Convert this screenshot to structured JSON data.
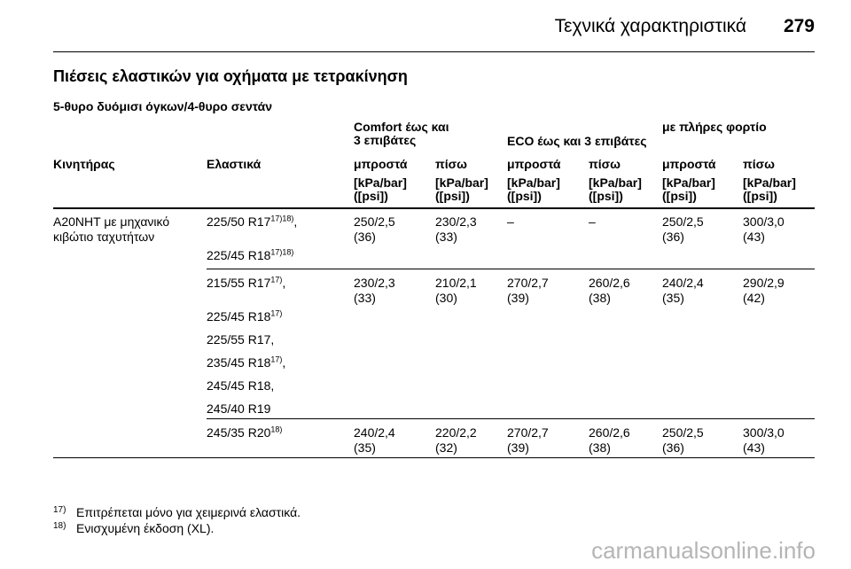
{
  "header": {
    "title": "Τεχνικά χαρακτηριστικά",
    "page": "279"
  },
  "section_title": "Πιέσεις ελαστικών για οχήματα με τετρακίνηση",
  "subsection_title": "5-θυρο δυόμισι όγκων/4-θυρο σεντάν",
  "table": {
    "group_headers": {
      "comfort_line1": "Comfort έως και",
      "comfort_line2": "3 επιβάτες",
      "eco": "ECO έως και 3 επιβάτες",
      "full": "με πλήρες φορτίο"
    },
    "columns": [
      "Κινητήρας",
      "Ελαστικά",
      "μπροστά",
      "πίσω",
      "μπροστά",
      "πίσω",
      "μπροστά",
      "πίσω"
    ],
    "unit_line1": "[kPa/bar]",
    "unit_line2": "([psi])",
    "engine_line1": "A20NHT με μηχανικό",
    "engine_line2": "κιβώτιο ταχυτήτων",
    "tyres": {
      "t1": "225/50 R17",
      "t1_sup": "17)18)",
      "t1_suffix": ",",
      "t2": "225/45 R18",
      "t2_sup": "17)18)",
      "t3": "215/55 R17",
      "t3_sup": "17)",
      "t3_suffix": ",",
      "t4": "225/45 R18",
      "t4_sup": "17)",
      "t5": "225/55 R17,",
      "t6": "235/45 R18",
      "t6_sup": "17)",
      "t6_suffix": ",",
      "t7": "245/45 R18,",
      "t8": "245/40 R19",
      "t9": "245/35 R20",
      "t9_sup": "18)"
    },
    "rows": [
      {
        "values": [
          [
            "250/2,5",
            "(36)"
          ],
          [
            "230/2,3",
            "(33)"
          ],
          [
            "–",
            ""
          ],
          [
            "–",
            ""
          ],
          [
            "250/2,5",
            "(36)"
          ],
          [
            "300/3,0",
            "(43)"
          ]
        ]
      },
      {
        "values": [
          [
            "230/2,3",
            "(33)"
          ],
          [
            "210/2,1",
            "(30)"
          ],
          [
            "270/2,7",
            "(39)"
          ],
          [
            "260/2,6",
            "(38)"
          ],
          [
            "240/2,4",
            "(35)"
          ],
          [
            "290/2,9",
            "(42)"
          ]
        ]
      },
      {
        "values": [
          [
            "240/2,4",
            "(35)"
          ],
          [
            "220/2,2",
            "(32)"
          ],
          [
            "270/2,7",
            "(39)"
          ],
          [
            "260/2,6",
            "(38)"
          ],
          [
            "250/2,5",
            "(36)"
          ],
          [
            "300/3,0",
            "(43)"
          ]
        ]
      }
    ]
  },
  "footnotes": [
    {
      "num": "17)",
      "text": "Επιτρέπεται μόνο για χειμερινά ελαστικά."
    },
    {
      "num": "18)",
      "text": "Ενισχυμένη έκδοση (XL)."
    }
  ],
  "watermark": "carmanualsonline.info",
  "colors": {
    "text": "#000000",
    "watermark": "#b5b5b5"
  }
}
